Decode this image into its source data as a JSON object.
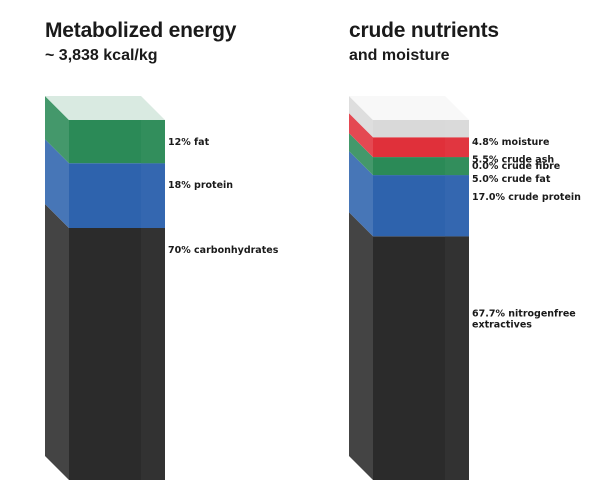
{
  "chart_data": [
    {
      "type": "bar",
      "title": "Metabolized energy",
      "subtitle": "~ 3,838 kcal/kg",
      "unit": "%",
      "segments": [
        {
          "name": "carbonhydrates",
          "value": 70,
          "label": "70% carbonhydrates",
          "color": "#2b2b2b"
        },
        {
          "name": "protein",
          "value": 18,
          "label": "18% protein",
          "color": "#2e63ad"
        },
        {
          "name": "fat",
          "value": 12,
          "label": "12% fat",
          "color": "#2b8a57"
        }
      ]
    },
    {
      "type": "bar",
      "title": "crude nutrients",
      "subtitle": "and moisture",
      "unit": "%",
      "segments": [
        {
          "name": "nitrogenfree extractives",
          "value": 67.7,
          "label": "67.7% nitrogenfree extractives",
          "label_lines": [
            "67.7% nitrogenfree",
            "extractives"
          ],
          "color": "#2b2b2b"
        },
        {
          "name": "crude protein",
          "value": 17.0,
          "label": "17.0% crude protein",
          "color": "#2e63ad"
        },
        {
          "name": "crude fat",
          "value": 5.0,
          "label": "5.0% crude fat",
          "color": "#2b8a57"
        },
        {
          "name": "crude fibre",
          "value": 0.0,
          "label": "0.0% crude fibre",
          "color": "#9c9c9c"
        },
        {
          "name": "crude ash",
          "value": 5.5,
          "label": "5.5% crude ash",
          "color": "#e0303a"
        },
        {
          "name": "moisture",
          "value": 4.8,
          "label": "4.8% moisture",
          "color": "#d9d9d9"
        }
      ]
    }
  ]
}
